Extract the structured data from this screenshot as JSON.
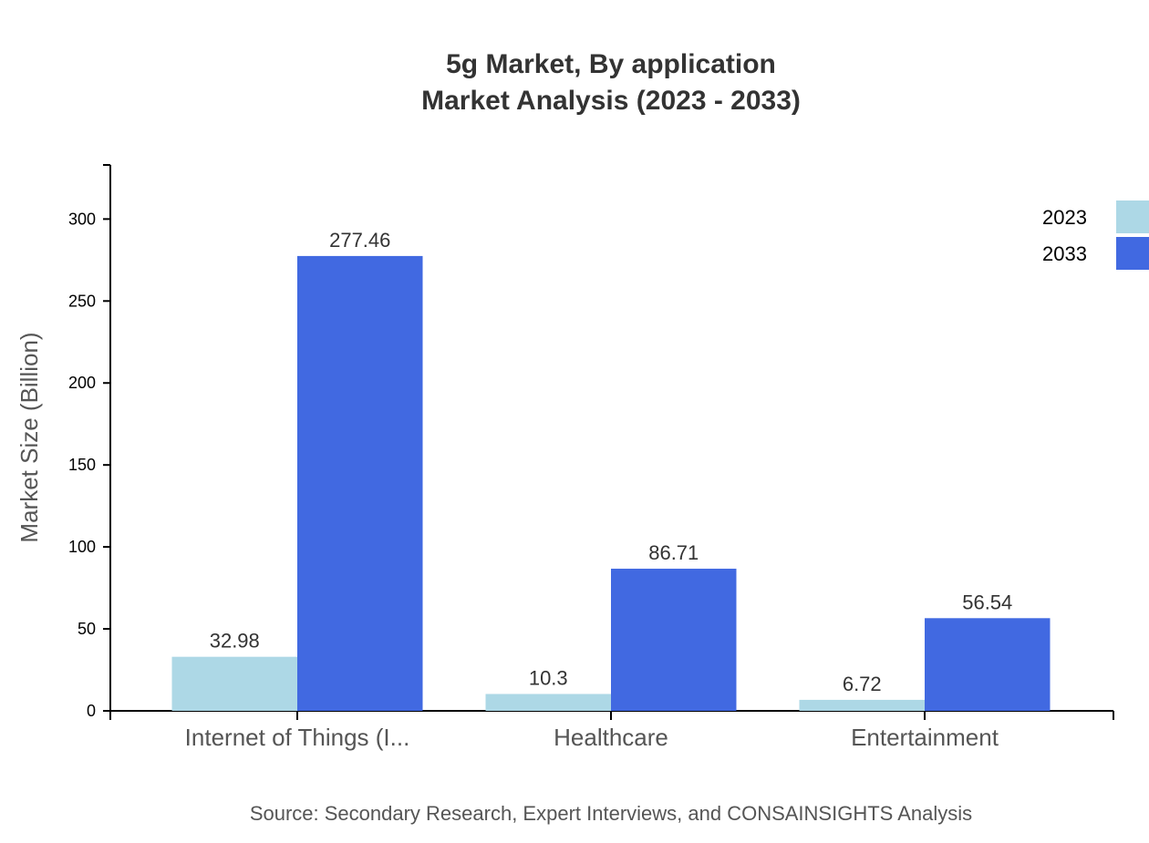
{
  "chart_data": {
    "type": "bar",
    "title": "5g Market, By application",
    "subtitle": "Market Analysis (2023 - 2033)",
    "xlabel": "",
    "ylabel": "Market Size (Billion)",
    "ylim": [
      0,
      333
    ],
    "yticks": [
      0,
      50,
      100,
      150,
      200,
      250,
      300
    ],
    "categories": [
      "Internet of Things (I...",
      "Healthcare",
      "Entertainment"
    ],
    "series": [
      {
        "name": "2023",
        "color": "#add8e6",
        "values": [
          32.98,
          10.3,
          6.72
        ]
      },
      {
        "name": "2033",
        "color": "#4169e1",
        "values": [
          277.46,
          86.71,
          56.54
        ]
      }
    ],
    "grid": false,
    "legend": "top-right",
    "source": "Source: Secondary Research, Expert Interviews, and CONSAINSIGHTS Analysis"
  }
}
